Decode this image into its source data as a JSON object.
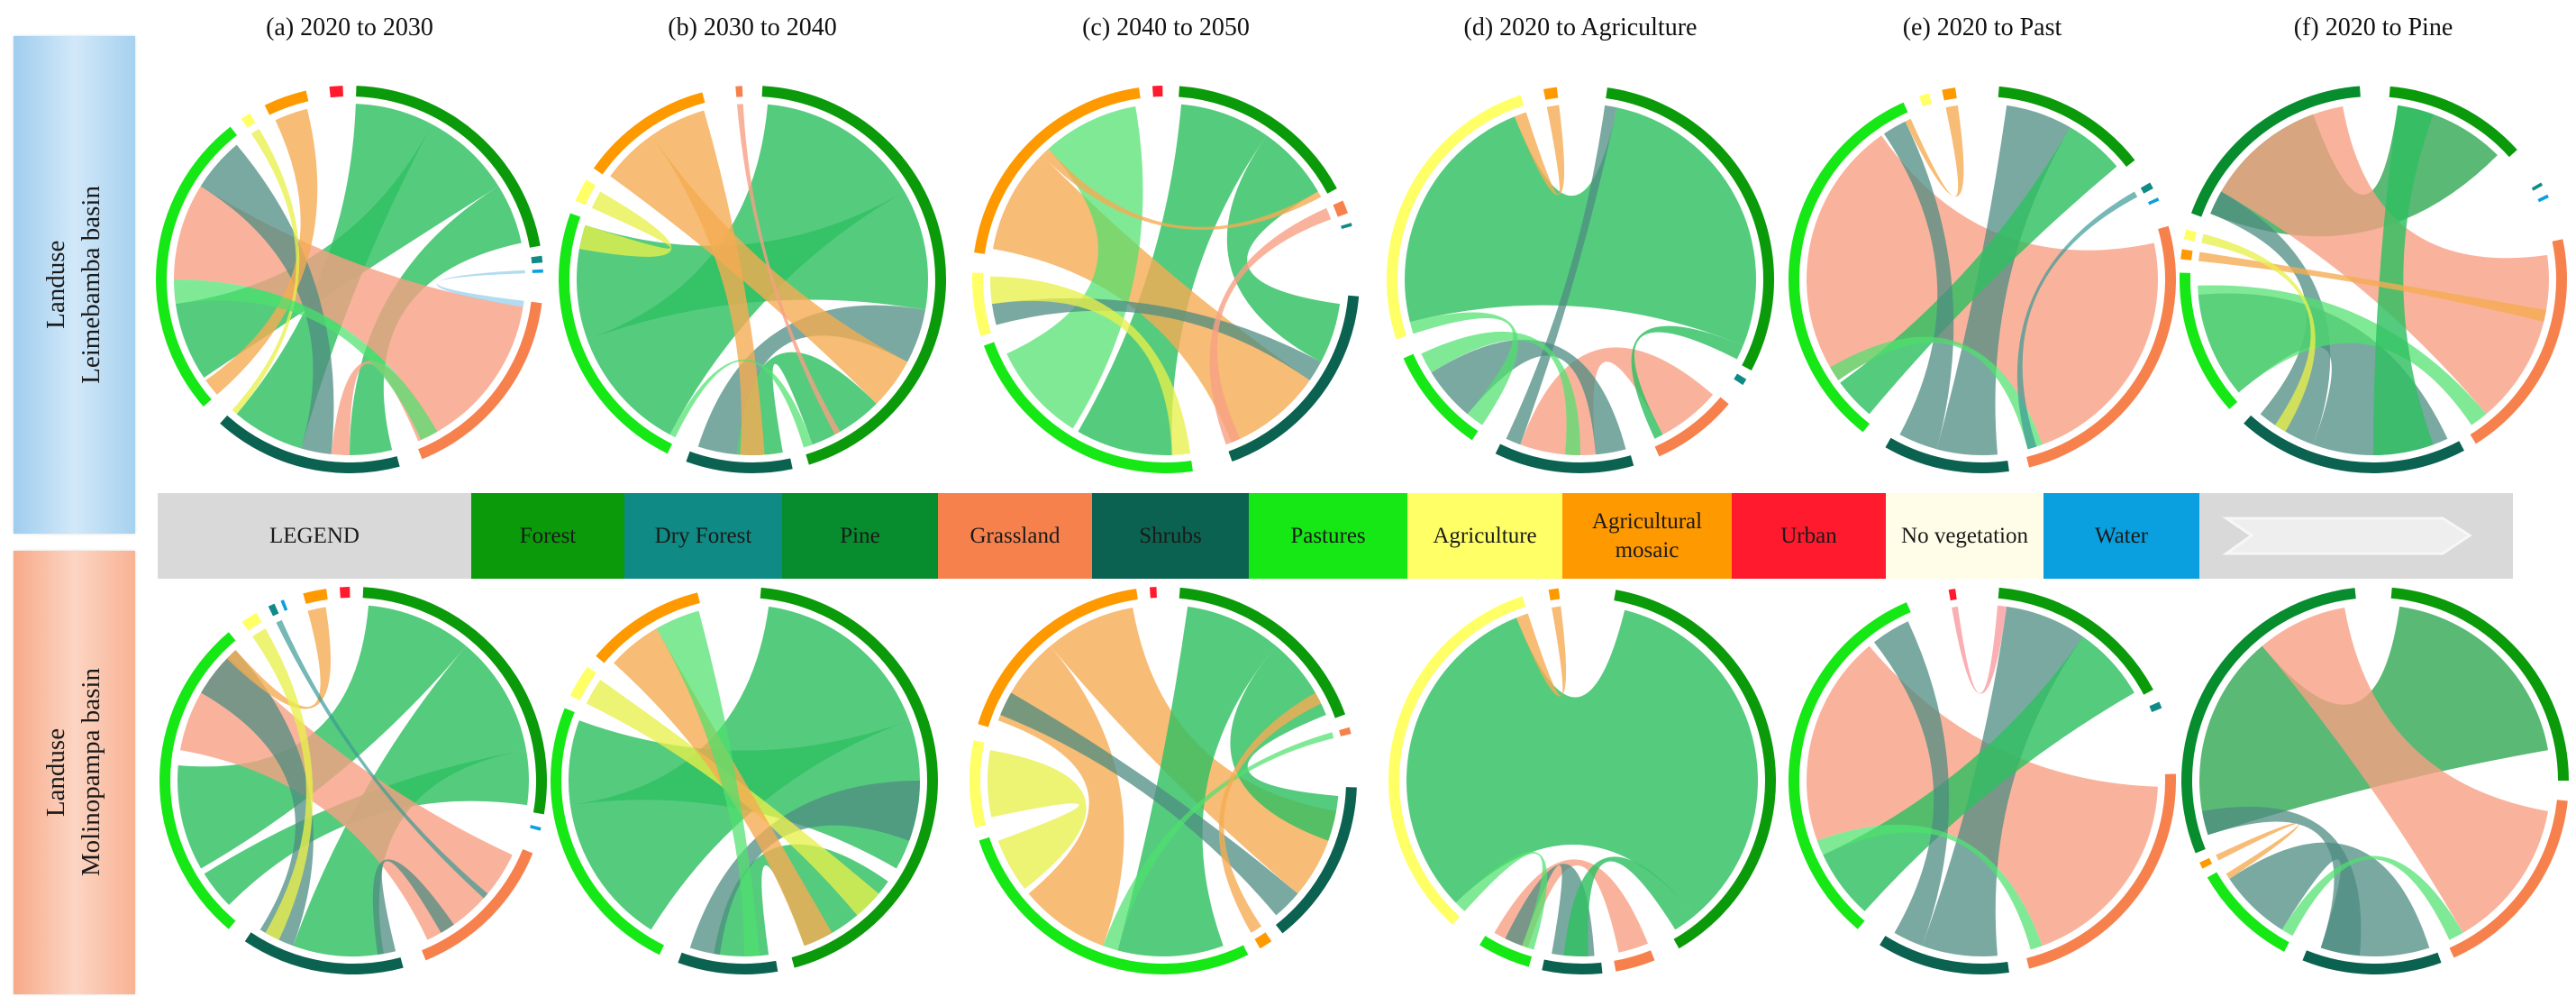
{
  "panels": [
    {
      "id": "a",
      "title": "(a) 2020 to 2030"
    },
    {
      "id": "b",
      "title": "(b) 2030 to 2040"
    },
    {
      "id": "c",
      "title": "(c) 2040 to 2050"
    },
    {
      "id": "d",
      "title": "(d) 2020 to Agriculture"
    },
    {
      "id": "e",
      "title": "(e) 2020 to Past"
    },
    {
      "id": "f",
      "title": "(f) 2020 to Pine"
    }
  ],
  "rows": [
    {
      "line1": "Landuse",
      "line2": "Leimebamba basin"
    },
    {
      "line1": "Landuse",
      "line2": "Molinopampa basin"
    }
  ],
  "legend": {
    "title": "LEGEND",
    "arrow_icon": "chevron-arrow-icon",
    "items": [
      {
        "key": "forest",
        "label": "Forest",
        "color": "#0a9a0a"
      },
      {
        "key": "dry_forest",
        "label": "Dry Forest",
        "color": "#0f8a84"
      },
      {
        "key": "pine",
        "label": "Pine",
        "color": "#078c2e"
      },
      {
        "key": "grassland",
        "label": "Grassland",
        "color": "#f7814d"
      },
      {
        "key": "shrubs",
        "label": "Shrubs",
        "color": "#0c6250"
      },
      {
        "key": "pastures",
        "label": "Pastures",
        "color": "#16e816"
      },
      {
        "key": "agriculture",
        "label": "Agriculture",
        "color": "#ffff66"
      },
      {
        "key": "agricultural_mosaic",
        "label": "Agricultural mosaic",
        "color": "#ff9900"
      },
      {
        "key": "urban",
        "label": "Urban",
        "color": "#ff1a2e"
      },
      {
        "key": "no_vegetation",
        "label": "No vegetation",
        "color": "#fffde8"
      },
      {
        "key": "water",
        "label": "Water",
        "color": "#0aa0e0"
      }
    ]
  }
}
